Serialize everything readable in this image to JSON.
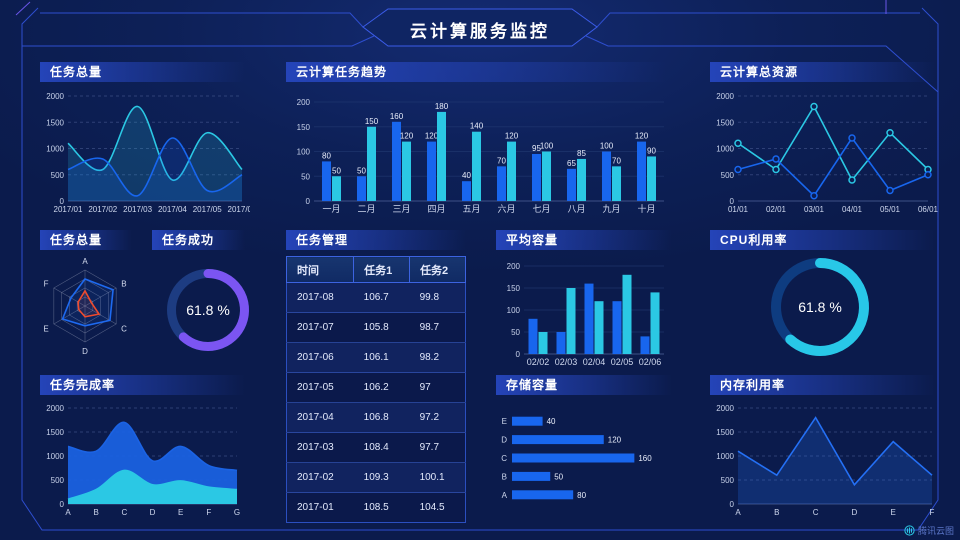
{
  "header": {
    "title": "云计算服务监控"
  },
  "watermark": {
    "label": "腾讯云图"
  },
  "theme": {
    "bg": "#0c1d52",
    "blue": "#1866ee",
    "cyan": "#2bc8e4",
    "purple": "#7b55f2",
    "red": "#ef4b2e",
    "axis_text": "#c8d2ea",
    "grid_dash": "#46588f",
    "grid_solid": "#223a72",
    "frame": "#2e4ecf"
  },
  "panels": {
    "p1": {
      "title": "任务总量"
    },
    "p2": {
      "title": "云计算任务趋势"
    },
    "p3": {
      "title": "云计算总资源"
    },
    "p4": {
      "title": "任务总量"
    },
    "p5": {
      "title": "任务成功"
    },
    "p6": {
      "title": "任务管理"
    },
    "p7": {
      "title": "平均容量"
    },
    "p8": {
      "title": "CPU利用率"
    },
    "p9": {
      "title": "任务完成率"
    },
    "p10": {
      "title": "存储容量"
    },
    "p11": {
      "title": "内存利用率"
    }
  },
  "table": {
    "headers": [
      "时间",
      "任务1",
      "任务2"
    ],
    "rows": [
      [
        "2017-08",
        "106.7",
        "99.8"
      ],
      [
        "2017-07",
        "105.8",
        "98.7"
      ],
      [
        "2017-06",
        "106.1",
        "98.2"
      ],
      [
        "2017-05",
        "106.2",
        "97"
      ],
      [
        "2017-04",
        "106.8",
        "97.2"
      ],
      [
        "2017-03",
        "108.4",
        "97.7"
      ],
      [
        "2017-02",
        "109.3",
        "100.1"
      ],
      [
        "2017-01",
        "108.5",
        "104.5"
      ]
    ]
  },
  "chart_data": [
    {
      "type": "line",
      "smooth": true,
      "title": "任务总量",
      "categories": [
        "2017/01",
        "2017/02",
        "2017/03",
        "2017/04",
        "2017/05",
        "2017/06"
      ],
      "ylim": [
        0,
        2000
      ],
      "y_ticks": [
        0,
        500,
        1000,
        1500,
        2000
      ],
      "grid": "dash",
      "series": [
        {
          "name": "cyan-series",
          "color": "#2bc8e4",
          "values": [
            1100,
            600,
            1800,
            400,
            1300,
            600
          ],
          "fill_opacity": 0.18
        },
        {
          "name": "blue-series",
          "color": "#1866ee",
          "values": [
            600,
            800,
            100,
            1200,
            200,
            500
          ],
          "fill_opacity": 0.18
        }
      ]
    },
    {
      "type": "bar",
      "title": "云计算任务趋势",
      "categories": [
        "一月",
        "二月",
        "三月",
        "四月",
        "五月",
        "六月",
        "七月",
        "八月",
        "九月",
        "十月"
      ],
      "ylim": [
        0,
        200
      ],
      "y_ticks": [
        0,
        50,
        100,
        150,
        200
      ],
      "grid": "solid",
      "show_values": true,
      "series": [
        {
          "name": "任务1",
          "color": "#1866ee",
          "values": [
            80,
            50,
            160,
            120,
            40,
            70,
            95,
            65,
            100,
            120
          ]
        },
        {
          "name": "任务2",
          "color": "#2bc8e4",
          "values": [
            50,
            150,
            120,
            180,
            140,
            120,
            100,
            85,
            70,
            90
          ]
        }
      ]
    },
    {
      "type": "line",
      "smooth": false,
      "markers": true,
      "title": "云计算总资源",
      "categories": [
        "01/01",
        "02/01",
        "03/01",
        "04/01",
        "05/01",
        "06/01"
      ],
      "ylim": [
        0,
        2000
      ],
      "y_ticks": [
        0,
        500,
        1000,
        1500,
        2000
      ],
      "grid": "dash",
      "series": [
        {
          "name": "cyan-series",
          "color": "#2bc8e4",
          "values": [
            1100,
            600,
            1800,
            400,
            1300,
            600
          ]
        },
        {
          "name": "blue-series",
          "color": "#1866ee",
          "values": [
            600,
            800,
            100,
            1200,
            200,
            500
          ]
        }
      ]
    },
    {
      "type": "radar",
      "title": "任务总量",
      "indicators": [
        "A",
        "B",
        "C",
        "D",
        "E",
        "F"
      ],
      "max": 100,
      "series": [
        {
          "name": "blue-polygon",
          "color": "#1e6af0",
          "values": [
            75,
            90,
            80,
            55,
            72,
            45
          ]
        },
        {
          "name": "red-polygon",
          "color": "#ef4b2e",
          "values": [
            42,
            20,
            45,
            30,
            20,
            22
          ]
        }
      ]
    },
    {
      "type": "donut",
      "title": "任务成功",
      "value": 61.8,
      "label": "61.8 %",
      "color": "#7b55f2",
      "track": "#1d3c82",
      "stroke_width": 9
    },
    {
      "type": "bar",
      "title": "平均容量",
      "categories": [
        "02/02",
        "02/03",
        "02/04",
        "02/05",
        "02/06"
      ],
      "ylim": [
        0,
        200
      ],
      "y_ticks": [
        0,
        50,
        100,
        150,
        200
      ],
      "grid": "solid",
      "show_values": false,
      "series": [
        {
          "name": "blue-series",
          "color": "#1866ee",
          "values": [
            80,
            50,
            160,
            120,
            40
          ]
        },
        {
          "name": "cyan-series",
          "color": "#2bc8e4",
          "values": [
            50,
            150,
            120,
            180,
            140
          ]
        }
      ]
    },
    {
      "type": "donut",
      "title": "CPU利用率",
      "value": 61.8,
      "label": "61.8 %",
      "color": "#28c8e8",
      "track": "#0e3c80",
      "stroke_width": 10
    },
    {
      "type": "line",
      "smooth": true,
      "title": "任务完成率",
      "categories": [
        "A",
        "B",
        "C",
        "D",
        "E",
        "F",
        "G"
      ],
      "ylim": [
        0,
        2000
      ],
      "y_ticks": [
        0,
        500,
        1000,
        1500,
        2000
      ],
      "grid": "dash",
      "series": [
        {
          "name": "blue-area",
          "color": "#1b63e4",
          "values": [
            1200,
            1100,
            1700,
            900,
            1200,
            800,
            700
          ],
          "fill_opacity": 0.92
        },
        {
          "name": "cyan-area",
          "color": "#2bc8e4",
          "values": [
            100,
            300,
            700,
            400,
            480,
            350,
            300
          ],
          "fill_opacity": 1
        }
      ]
    },
    {
      "type": "hbar",
      "title": "存储容量",
      "categories": [
        "E",
        "D",
        "C",
        "B",
        "A"
      ],
      "xlim": [
        0,
        170
      ],
      "show_values": true,
      "series": [
        {
          "name": "storage",
          "color": "#1866ee",
          "values": [
            40,
            120,
            160,
            50,
            80
          ]
        }
      ]
    },
    {
      "type": "line",
      "smooth": false,
      "title": "内存利用率",
      "categories": [
        "A",
        "B",
        "C",
        "D",
        "E",
        "F"
      ],
      "ylim": [
        0,
        2000
      ],
      "y_ticks": [
        0,
        500,
        1000,
        1500,
        2000
      ],
      "grid": "dash",
      "series": [
        {
          "name": "memory",
          "color": "#2470f5",
          "values": [
            1100,
            600,
            1800,
            400,
            1300,
            600
          ],
          "fill_opacity": 0.22
        }
      ]
    }
  ]
}
